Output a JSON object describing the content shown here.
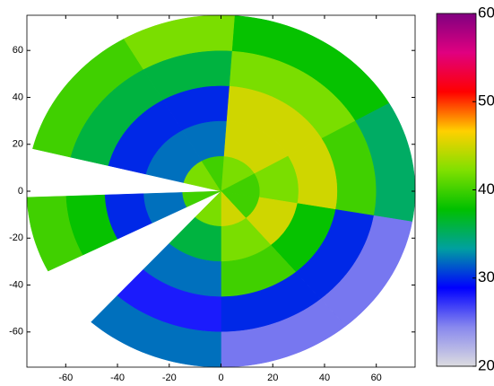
{
  "chart_data": {
    "type": "polar-sectors",
    "xlim": [
      -75,
      75
    ],
    "xticks": [
      -60,
      -40,
      -20,
      0,
      20,
      40,
      60
    ],
    "ylim": [
      -75,
      75
    ],
    "yticks": [
      -60,
      -40,
      -20,
      0,
      20,
      40,
      60
    ],
    "ranges": [
      0,
      15,
      30,
      45,
      60,
      75
    ],
    "sectors": [
      {
        "az": [
          4,
          60
        ],
        "values": [
          42,
          45,
          45,
          42,
          38
        ]
      },
      {
        "az": [
          60,
          100
        ],
        "values": [
          40,
          42,
          45,
          40,
          35
        ]
      },
      {
        "az": [
          100,
          140
        ],
        "values": [
          40,
          45,
          38,
          30,
          25
        ]
      },
      {
        "az": [
          140,
          180
        ],
        "values": [
          45,
          42,
          40,
          30,
          25
        ]
      },
      {
        "az": [
          180,
          222
        ],
        "values": [
          42,
          36,
          32,
          28,
          32
        ]
      },
      {
        "az": [
          243,
          268
        ],
        "values": [
          40,
          32,
          30,
          38,
          40
        ]
      },
      {
        "az": [
          284,
          330
        ],
        "values": [
          42,
          32,
          30,
          36,
          40
        ]
      },
      {
        "az": [
          330,
          364
        ],
        "values": [
          40,
          32,
          30,
          36,
          42
        ]
      }
    ],
    "clim": [
      20,
      60
    ],
    "cticks": [
      20,
      30,
      40,
      50,
      60
    ],
    "colormap": [
      "#dcdce0",
      "#8888ee",
      "#0000ff",
      "#00a0a0",
      "#00c000",
      "#80e000",
      "#ffd000",
      "#ff0000",
      "#e00080",
      "#800080"
    ]
  }
}
